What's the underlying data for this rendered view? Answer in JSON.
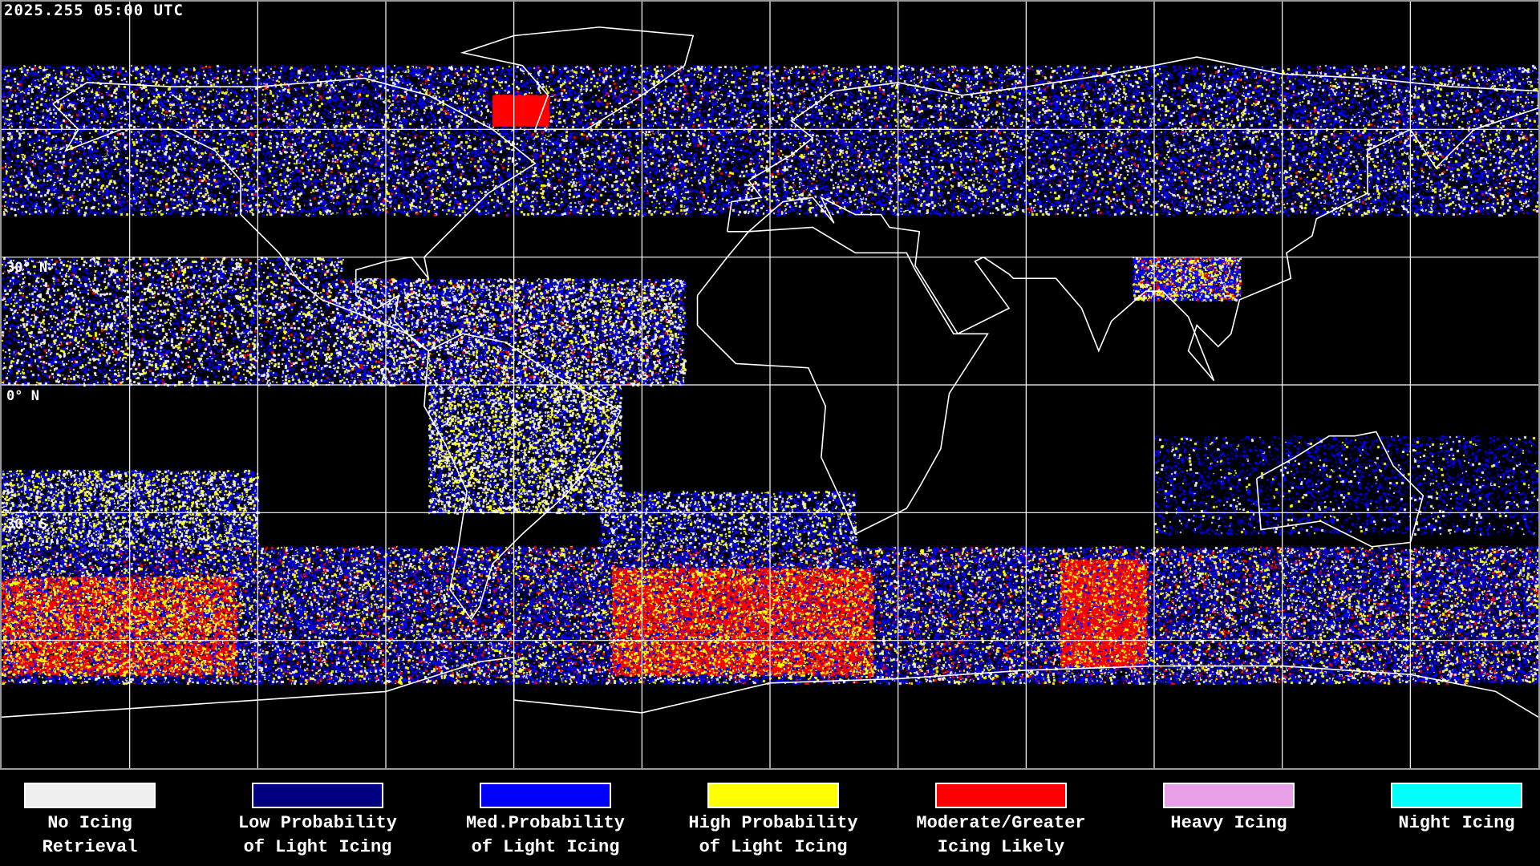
{
  "timestamp": "2025.255 05:00 UTC",
  "lat_labels": [
    "30° N",
    "0° N",
    "30° S"
  ],
  "map": {
    "projection": "equirectangular",
    "lon_range": [
      -180,
      180
    ],
    "lat_range": [
      -90,
      90
    ],
    "grid_spacing_deg": 30,
    "background": "#000000",
    "coastline_color": "#ffffff",
    "grid_color": "#ffffff"
  },
  "legend": [
    {
      "line1": "No Icing",
      "line2": "Retrieval",
      "color": "#f0f0f0"
    },
    {
      "line1": "Low Probability",
      "line2": "of Light Icing",
      "color": "#000080"
    },
    {
      "line1": "Med.Probability",
      "line2": "of Light Icing",
      "color": "#0000ff"
    },
    {
      "line1": "High Probability",
      "line2": "of Light Icing",
      "color": "#ffff00"
    },
    {
      "line1": "Moderate/Greater",
      "line2": "Icing Likely",
      "color": "#ff0000"
    },
    {
      "line1": "Heavy Icing",
      "line2": "",
      "color": "#e8a0e8"
    },
    {
      "line1": "Night Icing",
      "line2": "",
      "color": "#00ffff"
    }
  ]
}
